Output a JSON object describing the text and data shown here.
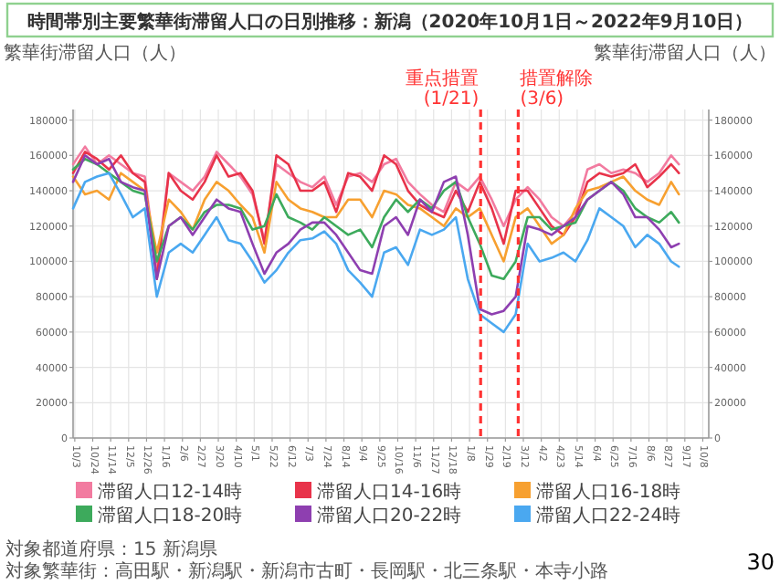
{
  "chart_data": {
    "type": "line",
    "title": "時間帯別主要繁華街滞留人口の日別推移：新潟（2020年10月1日～2022年9月10日）",
    "ylabel": "繁華街滞留人口（人）",
    "y2label": "繁華街滞留人口（人）",
    "x": [
      "2020-10-01",
      "2020-10-15",
      "2020-10-29",
      "2020-11-12",
      "2020-11-26",
      "2020-12-10",
      "2020-12-24",
      "2021-01-07",
      "2021-01-21",
      "2021-02-04",
      "2021-02-18",
      "2021-03-04",
      "2021-03-18",
      "2021-04-01",
      "2021-04-15",
      "2021-04-29",
      "2021-05-13",
      "2021-05-27",
      "2021-06-10",
      "2021-06-24",
      "2021-07-08",
      "2021-07-22",
      "2021-08-05",
      "2021-08-19",
      "2021-09-02",
      "2021-09-16",
      "2021-09-30",
      "2021-10-14",
      "2021-10-28",
      "2021-11-11",
      "2021-11-25",
      "2021-12-09",
      "2021-12-23",
      "2022-01-06",
      "2022-01-20",
      "2022-02-03",
      "2022-02-17",
      "2022-03-03",
      "2022-03-17",
      "2022-03-31",
      "2022-04-14",
      "2022-04-28",
      "2022-05-12",
      "2022-05-26",
      "2022-06-09",
      "2022-06-23",
      "2022-07-07",
      "2022-07-21",
      "2022-08-04",
      "2022-08-18",
      "2022-09-01",
      "2022-09-10"
    ],
    "series": [
      {
        "name": "滞留人口12-14時",
        "color": "#f27ba0",
        "values": [
          155000,
          165000,
          155000,
          160000,
          155000,
          150000,
          148000,
          95000,
          150000,
          145000,
          140000,
          148000,
          162000,
          155000,
          148000,
          138000,
          112000,
          155000,
          150000,
          145000,
          142000,
          148000,
          132000,
          148000,
          150000,
          145000,
          155000,
          158000,
          145000,
          138000,
          132000,
          128000,
          145000,
          140000,
          148000,
          135000,
          120000,
          135000,
          142000,
          135000,
          125000,
          120000,
          128000,
          152000,
          155000,
          150000,
          152000,
          150000,
          145000,
          150000,
          160000,
          155000
        ]
      },
      {
        "name": "滞留人口14-16時",
        "color": "#e8334a",
        "values": [
          150000,
          162000,
          158000,
          152000,
          160000,
          150000,
          145000,
          90000,
          150000,
          140000,
          135000,
          145000,
          160000,
          148000,
          150000,
          140000,
          110000,
          160000,
          155000,
          140000,
          140000,
          145000,
          128000,
          150000,
          148000,
          140000,
          160000,
          155000,
          140000,
          132000,
          128000,
          125000,
          140000,
          128000,
          145000,
          130000,
          110000,
          140000,
          140000,
          130000,
          120000,
          115000,
          125000,
          145000,
          150000,
          148000,
          150000,
          155000,
          142000,
          148000,
          155000,
          150000
        ]
      },
      {
        "name": "滞留人口16-18時",
        "color": "#f7a030",
        "values": [
          148000,
          138000,
          140000,
          135000,
          150000,
          145000,
          140000,
          105000,
          135000,
          128000,
          118000,
          135000,
          145000,
          140000,
          132000,
          125000,
          105000,
          145000,
          135000,
          130000,
          128000,
          125000,
          125000,
          135000,
          135000,
          125000,
          140000,
          138000,
          132000,
          130000,
          125000,
          120000,
          130000,
          125000,
          130000,
          115000,
          100000,
          125000,
          130000,
          120000,
          110000,
          115000,
          130000,
          140000,
          142000,
          145000,
          148000,
          140000,
          135000,
          132000,
          145000,
          138000
        ]
      },
      {
        "name": "滞留人口18-20時",
        "color": "#3daa5c",
        "values": [
          152000,
          158000,
          155000,
          150000,
          145000,
          140000,
          138000,
          100000,
          120000,
          125000,
          118000,
          128000,
          132000,
          132000,
          130000,
          118000,
          120000,
          138000,
          125000,
          122000,
          118000,
          125000,
          120000,
          115000,
          118000,
          108000,
          125000,
          135000,
          128000,
          135000,
          130000,
          140000,
          145000,
          125000,
          110000,
          92000,
          90000,
          100000,
          125000,
          125000,
          118000,
          120000,
          122000,
          135000,
          140000,
          145000,
          140000,
          130000,
          125000,
          122000,
          128000,
          122000
        ]
      },
      {
        "name": "滞留人口20-22時",
        "color": "#8e3fb0",
        "values": [
          145000,
          160000,
          155000,
          158000,
          145000,
          142000,
          140000,
          90000,
          120000,
          125000,
          115000,
          125000,
          135000,
          130000,
          128000,
          110000,
          93000,
          105000,
          110000,
          118000,
          122000,
          122000,
          115000,
          105000,
          95000,
          93000,
          120000,
          125000,
          115000,
          135000,
          128000,
          145000,
          148000,
          115000,
          73000,
          70000,
          72000,
          80000,
          120000,
          118000,
          115000,
          120000,
          125000,
          135000,
          140000,
          145000,
          138000,
          125000,
          125000,
          118000,
          108000,
          110000
        ]
      },
      {
        "name": "滞留人口22-24時",
        "color": "#4aa8f0",
        "values": [
          130000,
          145000,
          148000,
          150000,
          138000,
          125000,
          130000,
          80000,
          105000,
          110000,
          105000,
          115000,
          125000,
          112000,
          110000,
          100000,
          88000,
          95000,
          105000,
          112000,
          113000,
          117000,
          110000,
          95000,
          88000,
          80000,
          105000,
          108000,
          98000,
          118000,
          115000,
          118000,
          125000,
          90000,
          70000,
          65000,
          60000,
          70000,
          110000,
          100000,
          102000,
          105000,
          100000,
          112000,
          130000,
          125000,
          120000,
          108000,
          115000,
          110000,
          100000,
          97000
        ]
      }
    ],
    "xlim": [
      "2020-10-01",
      "2022-10-15"
    ],
    "xticks": [
      {
        "value": "2020-10-03",
        "label": "10/3"
      },
      {
        "value": "2020-10-24",
        "label": "10/24"
      },
      {
        "value": "2020-11-14",
        "label": "11/14"
      },
      {
        "value": "2020-12-05",
        "label": "12/5"
      },
      {
        "value": "2020-12-26",
        "label": "12/26"
      },
      {
        "value": "2021-01-16",
        "label": "1/16"
      },
      {
        "value": "2021-02-06",
        "label": "2/6"
      },
      {
        "value": "2021-02-27",
        "label": "2/27"
      },
      {
        "value": "2021-03-20",
        "label": "3/20"
      },
      {
        "value": "2021-04-10",
        "label": "4/10"
      },
      {
        "value": "2021-05-01",
        "label": "5/1"
      },
      {
        "value": "2021-05-22",
        "label": "5/22"
      },
      {
        "value": "2021-06-12",
        "label": "6/12"
      },
      {
        "value": "2021-07-03",
        "label": "7/3"
      },
      {
        "value": "2021-07-24",
        "label": "7/24"
      },
      {
        "value": "2021-08-14",
        "label": "8/14"
      },
      {
        "value": "2021-09-04",
        "label": "9/4"
      },
      {
        "value": "2021-09-25",
        "label": "9/25"
      },
      {
        "value": "2021-10-16",
        "label": "10/16"
      },
      {
        "value": "2021-11-06",
        "label": "11/6"
      },
      {
        "value": "2021-11-27",
        "label": "11/27"
      },
      {
        "value": "2021-12-18",
        "label": "12/18"
      },
      {
        "value": "2022-01-08",
        "label": "1/8"
      },
      {
        "value": "2022-01-29",
        "label": "1/29"
      },
      {
        "value": "2022-02-19",
        "label": "2/19"
      },
      {
        "value": "2022-03-12",
        "label": "3/12"
      },
      {
        "value": "2022-04-02",
        "label": "4/2"
      },
      {
        "value": "2022-04-23",
        "label": "4/23"
      },
      {
        "value": "2022-05-14",
        "label": "5/14"
      },
      {
        "value": "2022-06-04",
        "label": "6/4"
      },
      {
        "value": "2022-06-25",
        "label": "6/25"
      },
      {
        "value": "2022-07-16",
        "label": "7/16"
      },
      {
        "value": "2022-08-06",
        "label": "8/6"
      },
      {
        "value": "2022-08-27",
        "label": "8/27"
      },
      {
        "value": "2022-09-17",
        "label": "9/17"
      },
      {
        "value": "2022-10-08",
        "label": "10/8"
      }
    ],
    "ylim": [
      0,
      186000
    ],
    "yticks": [
      0,
      20000,
      40000,
      60000,
      80000,
      100000,
      120000,
      140000,
      160000,
      180000
    ],
    "y2lim": [
      0,
      186000
    ],
    "y2ticks": [
      0,
      20000,
      40000,
      60000,
      80000,
      100000,
      120000,
      140000,
      160000,
      180000
    ],
    "ref_lines": [
      {
        "axis": "x",
        "value": "2022-01-21",
        "label": "重点措置(1/21)",
        "color": "#ff3333",
        "line_style": "dashed"
      },
      {
        "axis": "x",
        "value": "2022-03-06",
        "label": "措置解除(3/6)",
        "color": "#ff3333",
        "line_style": "dashed"
      }
    ],
    "grid": true,
    "legend": "bottom",
    "line_style": "solid",
    "annotations": [
      "対象都道府県：15 新潟県",
      "対象繁華街：高田駅・新潟駅・新潟市古町・長岡駅・北三条駅・本寺小路",
      "30"
    ]
  }
}
